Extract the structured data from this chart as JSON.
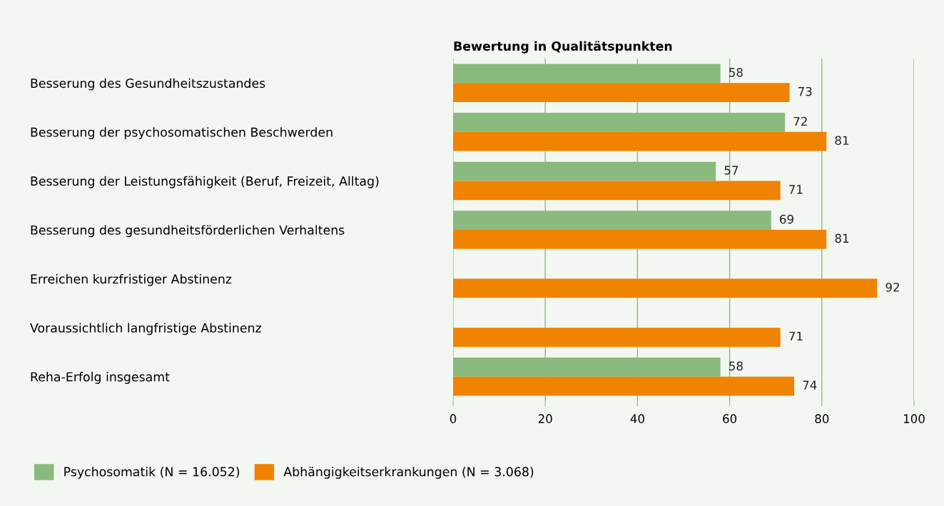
{
  "chart_data": {
    "type": "bar",
    "orientation": "horizontal",
    "title": "Bewertung in Qualitätspunkten",
    "categories": [
      "Besserung des Gesundheitszustandes",
      "Besserung der psychosomatischen Beschwerden",
      "Besserung der Leistungsfähigkeit (Beruf, Freizeit, Alltag)",
      "Besserung des gesundheitsförderlichen Verhaltens",
      "Erreichen kurzfristiger Abstinenz",
      "Voraussichtlich langfristige Abstinenz",
      "Reha-Erfolg insgesamt"
    ],
    "series": [
      {
        "name": "Psychosomatik (N = 16.052)",
        "color": "#8aba7e",
        "values": [
          58,
          72,
          57,
          69,
          null,
          null,
          58
        ]
      },
      {
        "name": "Abhängigkeitserkrankungen (N = 3.068)",
        "color": "#f08300",
        "values": [
          73,
          81,
          71,
          81,
          92,
          71,
          74
        ]
      }
    ],
    "xlim": [
      0,
      100
    ],
    "xticks": [
      0,
      20,
      40,
      60,
      80,
      100
    ],
    "grid": "x",
    "legend": "bottom left",
    "data_labels": true
  }
}
